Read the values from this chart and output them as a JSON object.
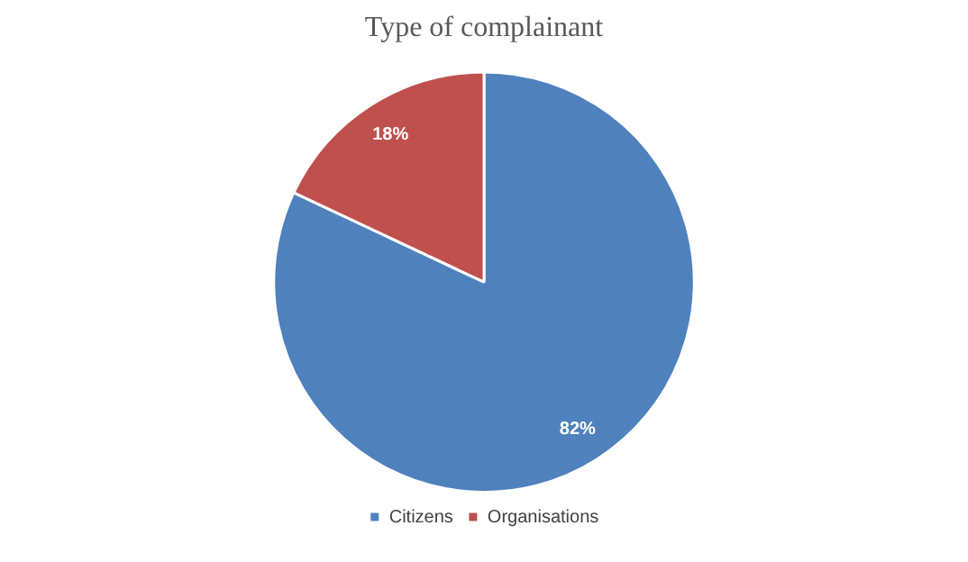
{
  "chart_data": {
    "type": "pie",
    "title": "Type of complainant",
    "categories": [
      "Citizens",
      "Organisations"
    ],
    "values": [
      82,
      18
    ],
    "colors": [
      "#4f81bd",
      "#c0504d"
    ],
    "value_labels": [
      "82%",
      "18%"
    ],
    "legend": "bottom"
  }
}
